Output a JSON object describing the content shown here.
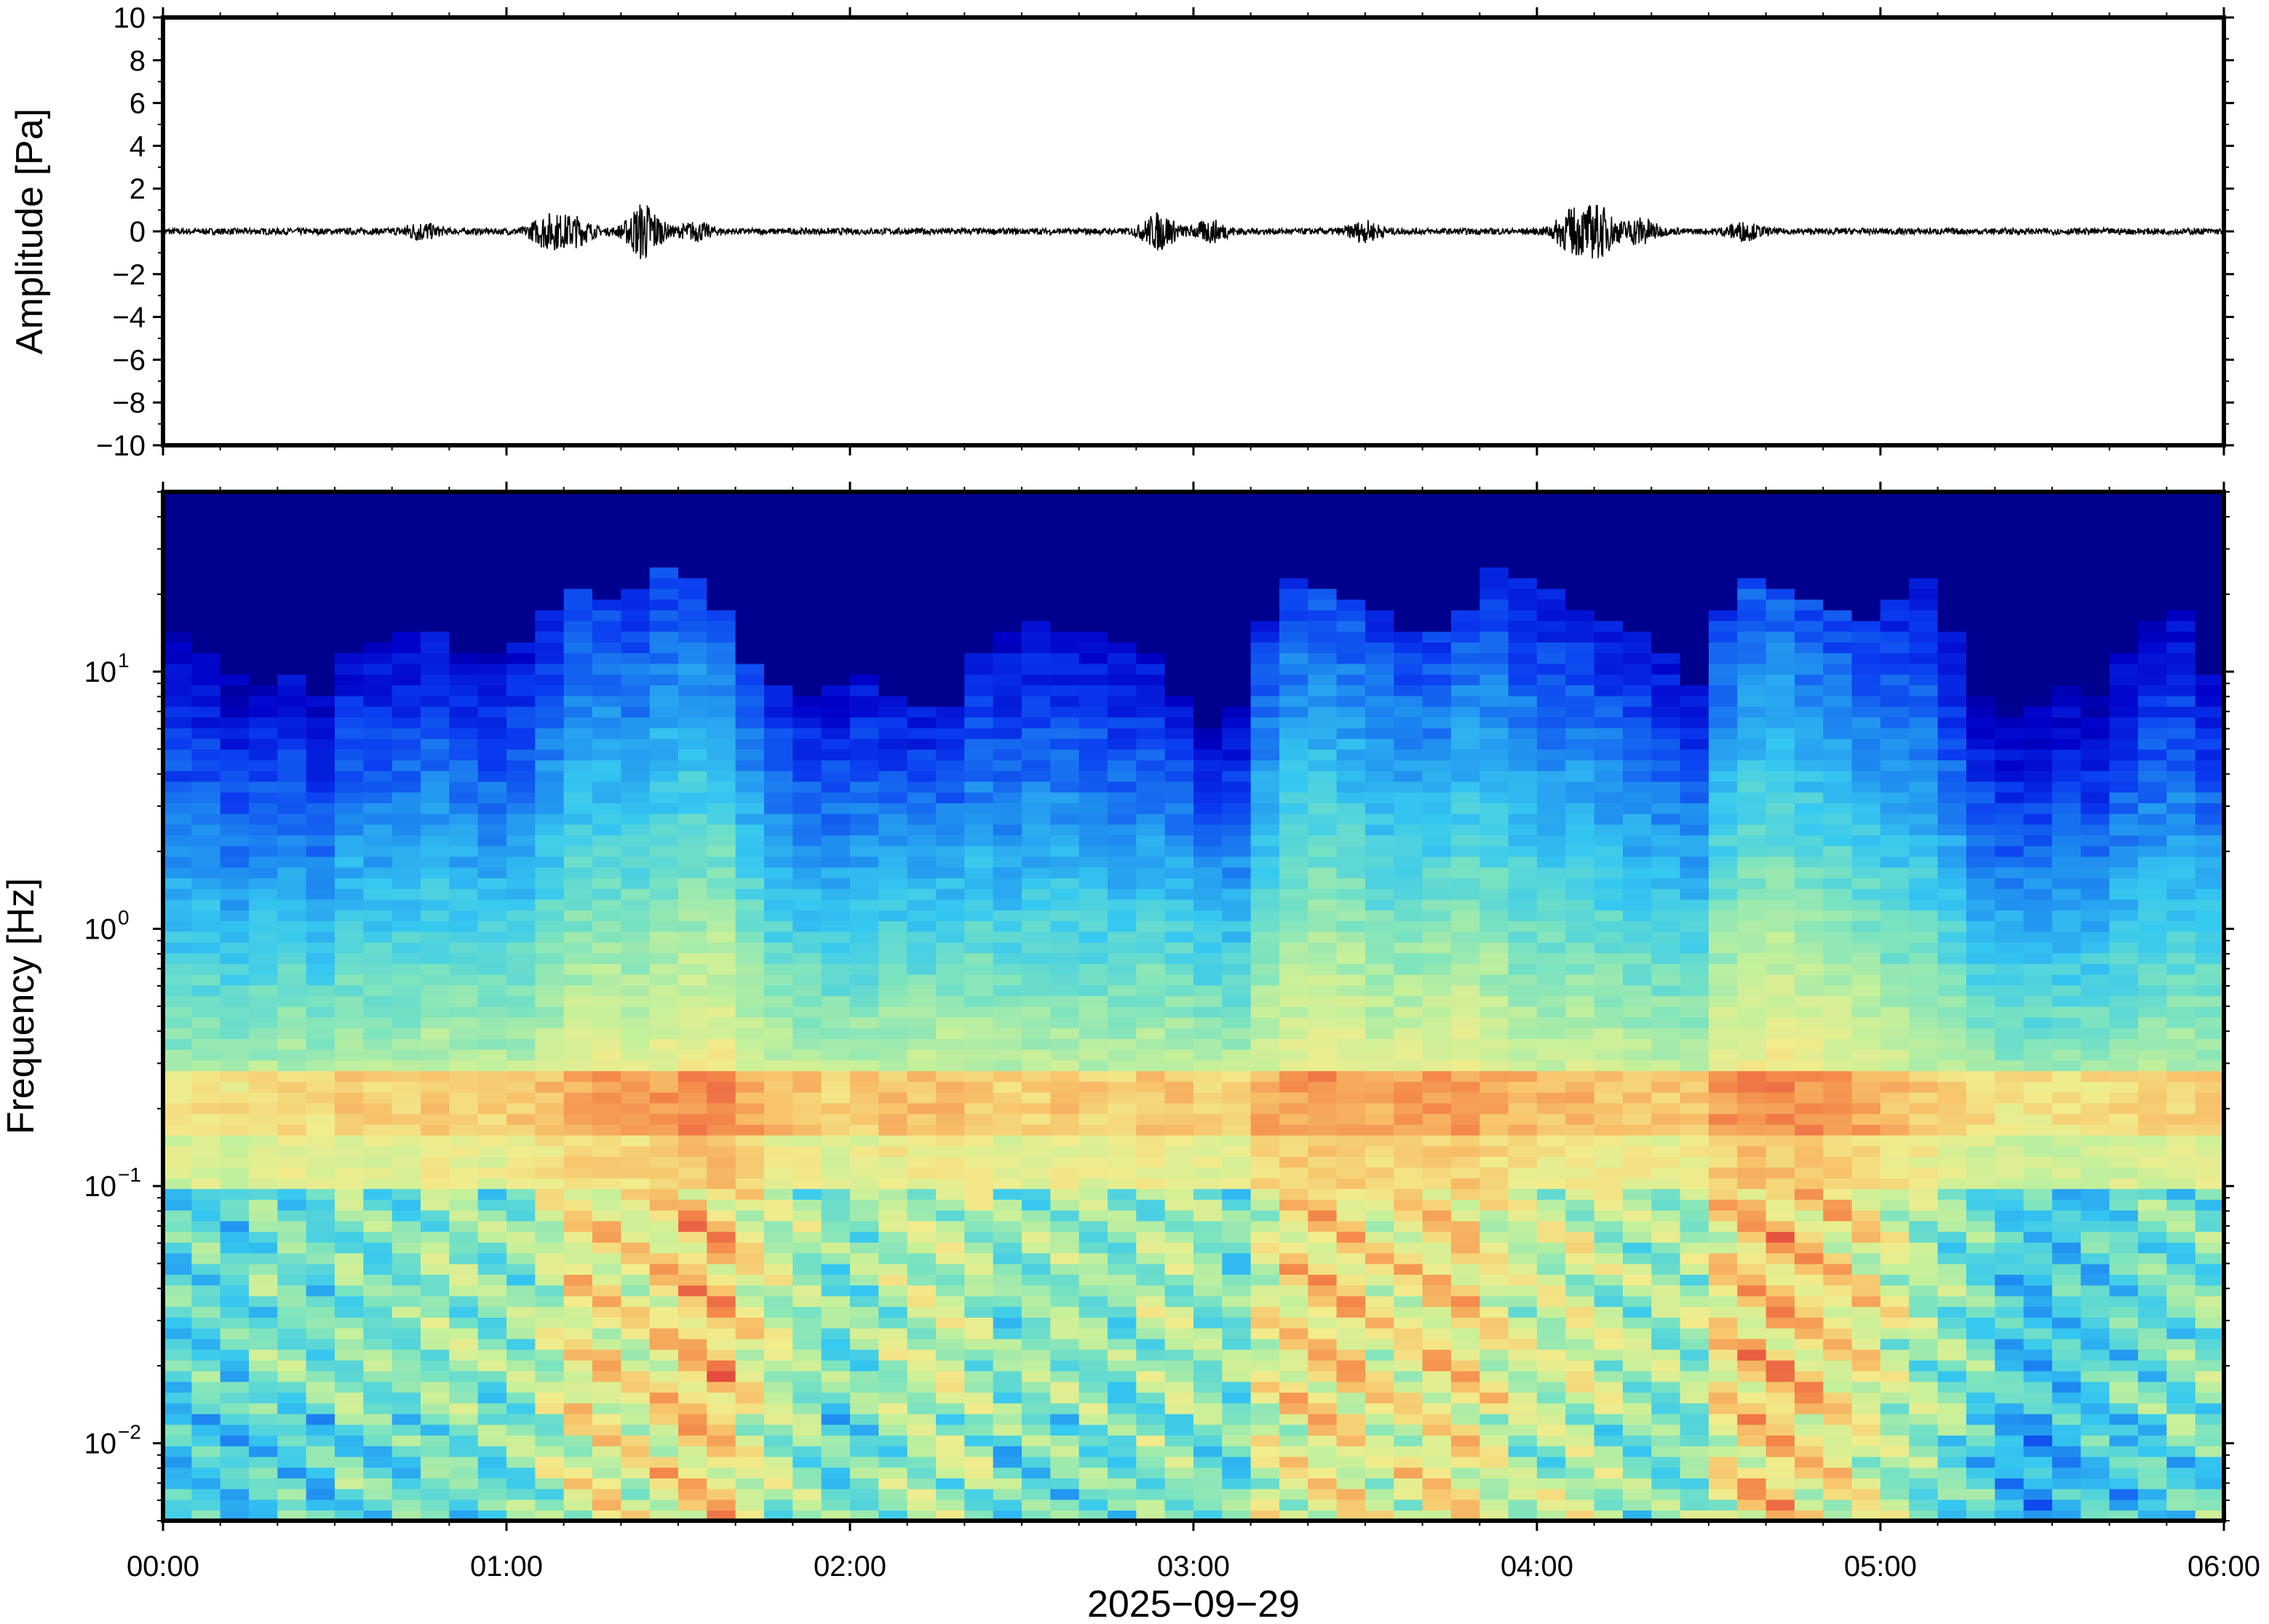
{
  "chart_data": [
    {
      "type": "line",
      "panel": "waveform",
      "ylabel": "Amplitude [Pa]",
      "xlabel": "",
      "ylim": [
        -10,
        10
      ],
      "yticks": [
        -10,
        -8,
        -6,
        -4,
        -2,
        0,
        2,
        4,
        6,
        8,
        10
      ],
      "ytick_labels": [
        "−10",
        "−8",
        "−6",
        "−4",
        "−2",
        "0",
        "2",
        "4",
        "6",
        "8",
        "10"
      ],
      "xlim_hours": [
        0,
        6
      ],
      "grid": false,
      "series": [
        {
          "color": "#000000",
          "noise_floor_pa": 0.15,
          "envelope": [
            {
              "t": 0.75,
              "amp": 0.35
            },
            {
              "t": 1.12,
              "amp": 0.7
            },
            {
              "t": 1.2,
              "amp": 0.6
            },
            {
              "t": 1.4,
              "amp": 1.3
            },
            {
              "t": 1.55,
              "amp": 0.35
            },
            {
              "t": 2.9,
              "amp": 0.8
            },
            {
              "t": 3.05,
              "amp": 0.45
            },
            {
              "t": 3.5,
              "amp": 0.4
            },
            {
              "t": 4.1,
              "amp": 0.9
            },
            {
              "t": 4.18,
              "amp": 1.1
            },
            {
              "t": 4.3,
              "amp": 0.6
            },
            {
              "t": 4.6,
              "amp": 0.35
            }
          ]
        }
      ]
    },
    {
      "type": "heatmap",
      "panel": "spectrogram",
      "ylabel": "Frequency [Hz]",
      "xlabel": "2025−09−29",
      "y_scale": "log",
      "ylim_hz": [
        0.005,
        50
      ],
      "yticks": [
        {
          "value": 0.01,
          "base": "10",
          "exp": "−2"
        },
        {
          "value": 0.1,
          "base": "10",
          "exp": "−1"
        },
        {
          "value": 1,
          "base": "10",
          "exp": "0"
        },
        {
          "value": 10,
          "base": "10",
          "exp": "1"
        }
      ],
      "x_ticks": [
        "00:00",
        "01:00",
        "02:00",
        "03:00",
        "04:00",
        "05:00",
        "06:00"
      ],
      "x_tick_hours": [
        0,
        1,
        2,
        3,
        4,
        5,
        6
      ],
      "colormap": [
        "#00007f",
        "#0000c8",
        "#0a3cf0",
        "#1f8cf0",
        "#36c8f0",
        "#7ae3c0",
        "#c6f09a",
        "#f2ec8c",
        "#f7c26a",
        "#f4894a",
        "#e44c3e"
      ],
      "time_bins": 72,
      "low_band_intensity": [
        0.52,
        0.55,
        0.5,
        0.58,
        0.6,
        0.55,
        0.62,
        0.6,
        0.58,
        0.65,
        0.63,
        0.6,
        0.64,
        0.72,
        0.82,
        0.85,
        0.8,
        0.86,
        0.92,
        0.95,
        0.82,
        0.7,
        0.66,
        0.6,
        0.62,
        0.68,
        0.7,
        0.72,
        0.68,
        0.6,
        0.62,
        0.64,
        0.62,
        0.6,
        0.66,
        0.68,
        0.62,
        0.6,
        0.78,
        0.85,
        0.9,
        0.88,
        0.8,
        0.82,
        0.86,
        0.88,
        0.8,
        0.72,
        0.7,
        0.74,
        0.7,
        0.66,
        0.64,
        0.66,
        0.86,
        0.92,
        0.94,
        0.9,
        0.86,
        0.82,
        0.72,
        0.66,
        0.62,
        0.56,
        0.5,
        0.48,
        0.5,
        0.52,
        0.54,
        0.56,
        0.58,
        0.6
      ],
      "high_freq_extent_hz": [
        14,
        12,
        10,
        9,
        10,
        8,
        12,
        13,
        15,
        14,
        12,
        12,
        13,
        18,
        22,
        20,
        22,
        26,
        24,
        18,
        11,
        9,
        8,
        9,
        10,
        8,
        7,
        7,
        12,
        14,
        16,
        15,
        14,
        13,
        12,
        8,
        6,
        7,
        16,
        24,
        22,
        20,
        18,
        15,
        14,
        18,
        26,
        24,
        22,
        18,
        16,
        14,
        12,
        9,
        18,
        24,
        22,
        20,
        18,
        16,
        20,
        24,
        14,
        8,
        7,
        8,
        9,
        8,
        12,
        16,
        18,
        10
      ]
    }
  ]
}
